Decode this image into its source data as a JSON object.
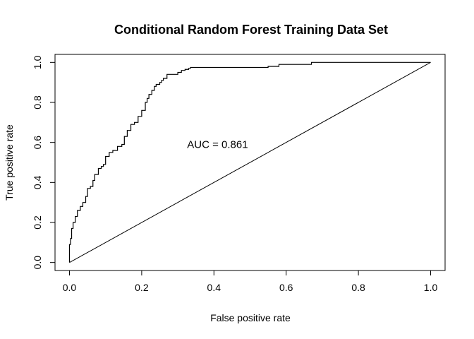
{
  "chart_data": {
    "type": "line",
    "title": "Conditional Random Forest Training Data Set",
    "xlabel": "False positive rate",
    "ylabel": "True positive rate",
    "xlim": [
      -0.04,
      1.04
    ],
    "ylim": [
      -0.04,
      1.04
    ],
    "x_ticks": [
      0.0,
      0.2,
      0.4,
      0.6,
      0.8,
      1.0
    ],
    "x_tick_labels": [
      "0.0",
      "0.2",
      "0.4",
      "0.6",
      "0.8",
      "1.0"
    ],
    "y_ticks": [
      0.0,
      0.2,
      0.4,
      0.6,
      0.8,
      1.0
    ],
    "y_tick_labels": [
      "0.0",
      "0.2",
      "0.4",
      "0.6",
      "0.8",
      "1.0"
    ],
    "grid": false,
    "annotation": {
      "text": "AUC = 0.861",
      "x": 0.41,
      "y": 0.59
    },
    "series": [
      {
        "values_x": [
          0.0,
          0.0,
          0.003,
          0.003,
          0.006,
          0.006,
          0.01,
          0.01,
          0.016,
          0.016,
          0.022,
          0.022,
          0.03,
          0.03,
          0.037,
          0.037,
          0.045,
          0.045,
          0.05,
          0.05,
          0.058,
          0.058,
          0.065,
          0.065,
          0.07,
          0.07,
          0.08,
          0.08,
          0.088,
          0.088,
          0.094,
          0.094,
          0.1,
          0.1,
          0.11,
          0.11,
          0.12,
          0.12,
          0.133,
          0.133,
          0.145,
          0.145,
          0.152,
          0.152,
          0.16,
          0.16,
          0.17,
          0.17,
          0.18,
          0.18,
          0.19,
          0.19,
          0.2,
          0.2,
          0.21,
          0.21,
          0.215,
          0.215,
          0.22,
          0.22,
          0.228,
          0.228,
          0.235,
          0.235,
          0.24,
          0.24,
          0.25,
          0.25,
          0.255,
          0.255,
          0.26,
          0.26,
          0.27,
          0.27,
          0.3,
          0.3,
          0.31,
          0.31,
          0.32,
          0.32,
          0.33,
          0.33,
          0.335,
          0.335,
          0.55,
          0.55,
          0.58,
          0.58,
          0.67,
          0.67,
          1.0
        ],
        "values_y": [
          0.0,
          0.09,
          0.09,
          0.12,
          0.12,
          0.17,
          0.17,
          0.2,
          0.2,
          0.23,
          0.23,
          0.26,
          0.26,
          0.28,
          0.28,
          0.3,
          0.3,
          0.33,
          0.33,
          0.37,
          0.37,
          0.38,
          0.38,
          0.41,
          0.41,
          0.44,
          0.44,
          0.47,
          0.47,
          0.48,
          0.48,
          0.49,
          0.49,
          0.53,
          0.53,
          0.55,
          0.55,
          0.56,
          0.56,
          0.58,
          0.58,
          0.59,
          0.59,
          0.63,
          0.63,
          0.66,
          0.66,
          0.69,
          0.69,
          0.7,
          0.7,
          0.73,
          0.73,
          0.76,
          0.76,
          0.8,
          0.8,
          0.82,
          0.82,
          0.84,
          0.84,
          0.86,
          0.86,
          0.88,
          0.88,
          0.89,
          0.89,
          0.9,
          0.9,
          0.91,
          0.91,
          0.92,
          0.92,
          0.94,
          0.94,
          0.95,
          0.95,
          0.96,
          0.96,
          0.965,
          0.965,
          0.97,
          0.97,
          0.975,
          0.975,
          0.98,
          0.98,
          0.99,
          0.99,
          1.0,
          1.0
        ]
      }
    ],
    "reference_line": {
      "x": [
        0,
        1
      ],
      "y": [
        0,
        1
      ]
    }
  }
}
